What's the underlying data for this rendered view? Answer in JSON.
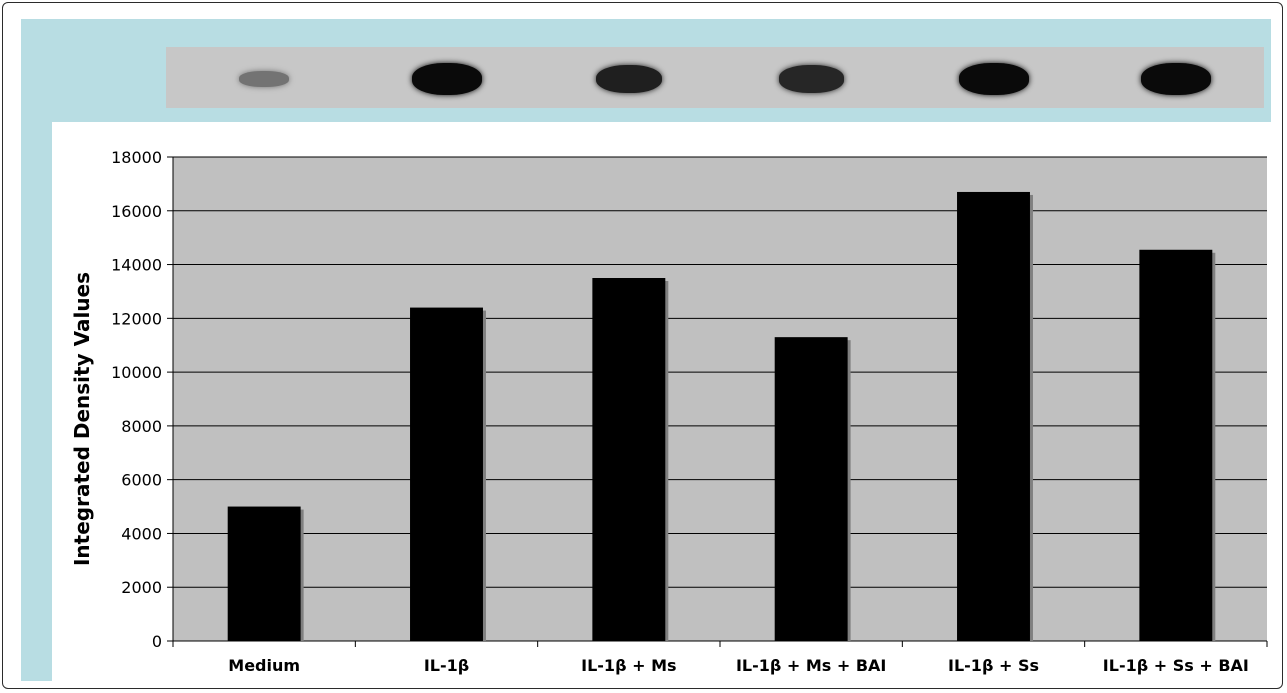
{
  "colors": {
    "panel_background": "#b8dde3",
    "plot_background": "#c0c0c0",
    "bar_fill": "#000000",
    "bar_shadow": "#808080",
    "blot_background": "#c7c7c7"
  },
  "blot": {
    "lanes": [
      {
        "intensity": 0.25
      },
      {
        "intensity": 1.0
      },
      {
        "intensity": 0.85
      },
      {
        "intensity": 0.8
      },
      {
        "intensity": 1.0
      },
      {
        "intensity": 1.0
      }
    ]
  },
  "chart_data": {
    "type": "bar",
    "categories": [
      "Medium",
      "IL-1β",
      "IL-1β + Ms",
      "IL-1β + Ms + BAI",
      "IL-1β + Ss",
      "IL-1β + Ss + BAI"
    ],
    "values": [
      5000,
      12400,
      13500,
      11300,
      16700,
      14550
    ],
    "title": "",
    "xlabel": "",
    "ylabel": "Integrated Density Values",
    "ylim": [
      0,
      18000
    ],
    "yticks": [
      0,
      2000,
      4000,
      6000,
      8000,
      10000,
      12000,
      14000,
      16000,
      18000
    ],
    "grid": true,
    "legend": "none"
  }
}
